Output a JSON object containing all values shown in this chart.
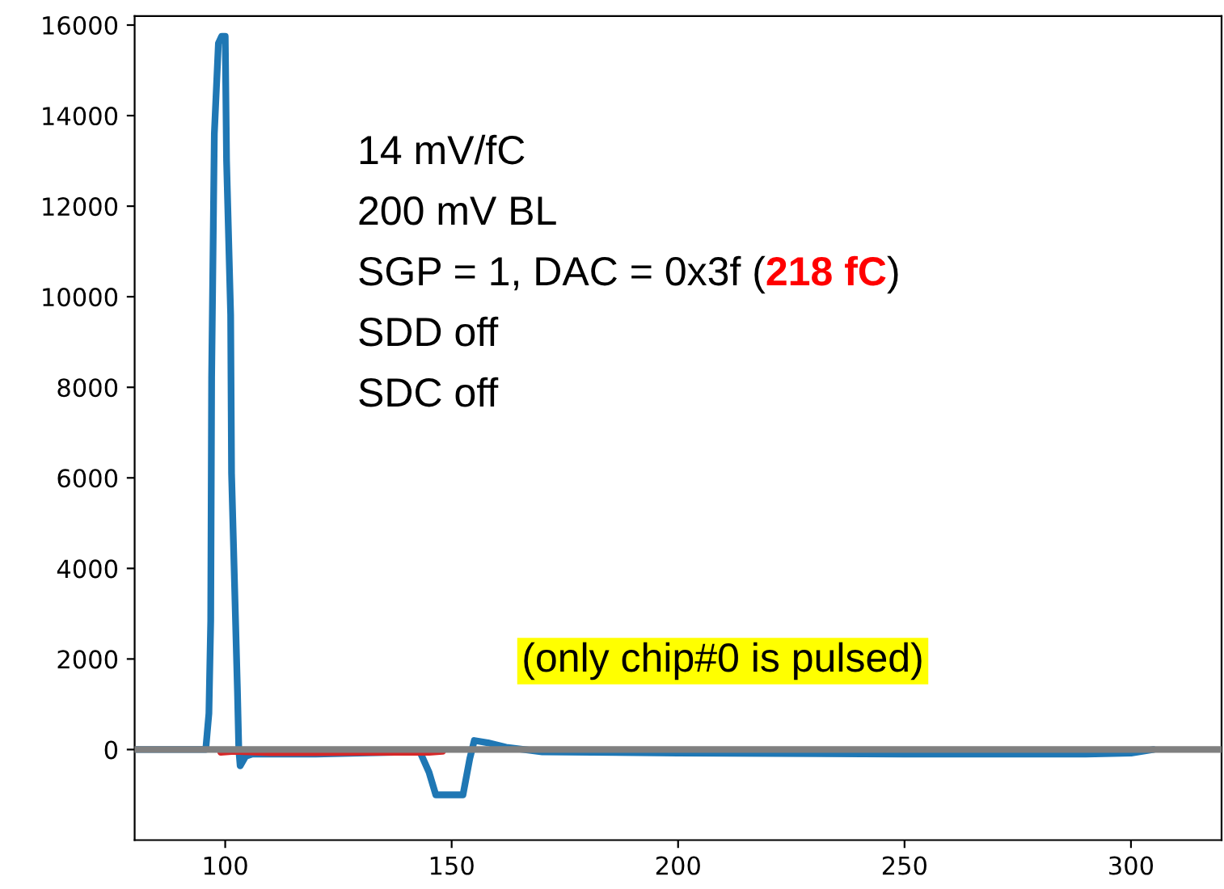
{
  "chart_data": {
    "type": "line",
    "series": [
      {
        "color": "#1f77b4",
        "x": [
          80,
          95,
          95.7,
          96.4,
          96.8,
          97.0,
          97.6,
          98.5,
          99.2,
          100,
          100.3,
          101.2,
          101.4,
          102.7,
          103,
          103.3,
          104.5,
          106,
          120,
          143,
          145,
          146.5,
          152.5,
          154,
          155,
          158,
          162,
          170,
          200,
          250,
          290,
          300,
          305
        ],
        "values": [
          0,
          0,
          0,
          800,
          2850,
          8200,
          13600,
          15600,
          15750,
          15750,
          13000,
          9600,
          6100,
          1300,
          0,
          -360,
          -150,
          -100,
          -100,
          -50,
          -500,
          -1000,
          -1000,
          -200,
          200,
          150,
          50,
          -50,
          -80,
          -100,
          -100,
          -80,
          0
        ]
      },
      {
        "color": "#d62728",
        "x": [
          99,
          102,
          110,
          120,
          130,
          145,
          148
        ],
        "values": [
          -60,
          -40,
          -70,
          -70,
          -60,
          -60,
          -40
        ]
      }
    ],
    "xlim": [
      80,
      320
    ],
    "ylim": [
      -2000,
      16200
    ],
    "xticks": [
      100,
      150,
      200,
      250,
      300
    ],
    "yticks": [
      0,
      2000,
      4000,
      6000,
      8000,
      10000,
      12000,
      14000,
      16000
    ],
    "ref_lines": [
      {
        "axis": "y",
        "value": 0,
        "color": "#808080"
      }
    ],
    "grid": false,
    "legend": false,
    "annotations": [
      "14 mV/fC",
      "200 mV BL",
      "SGP = 1, DAC = 0x3f (",
      "218 fC",
      ")",
      "SDD off",
      "SDC off",
      "(only chip#0 is pulsed)"
    ]
  }
}
